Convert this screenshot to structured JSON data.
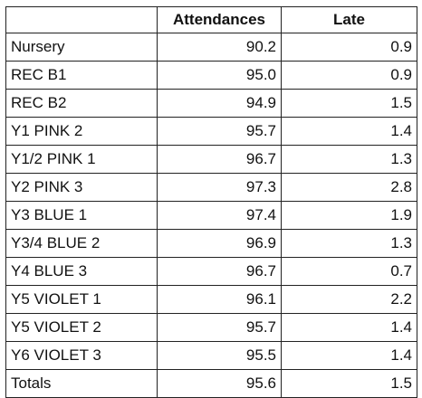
{
  "table": {
    "headers": [
      "",
      "Attendances",
      "Late"
    ],
    "rows": [
      {
        "name": "Nursery",
        "attendances": "90.2",
        "late": "0.9"
      },
      {
        "name": "REC B1",
        "attendances": "95.0",
        "late": "0.9"
      },
      {
        "name": "REC B2",
        "attendances": "94.9",
        "late": "1.5"
      },
      {
        "name": "Y1 PINK 2",
        "attendances": "95.7",
        "late": "1.4"
      },
      {
        "name": "Y1/2 PINK 1",
        "attendances": "96.7",
        "late": "1.3"
      },
      {
        "name": "Y2 PINK 3",
        "attendances": "97.3",
        "late": "2.8"
      },
      {
        "name": "Y3 BLUE 1",
        "attendances": "97.4",
        "late": "1.9"
      },
      {
        "name": "Y3/4 BLUE 2",
        "attendances": "96.9",
        "late": "1.3"
      },
      {
        "name": "Y4 BLUE 3",
        "attendances": "96.7",
        "late": "0.7"
      },
      {
        "name": "Y5 VIOLET 1",
        "attendances": "96.1",
        "late": "2.2"
      },
      {
        "name": "Y5 VIOLET 2",
        "attendances": "95.7",
        "late": "1.4"
      },
      {
        "name": "Y6 VIOLET 3",
        "attendances": "95.5",
        "late": "1.4"
      },
      {
        "name": "Totals",
        "attendances": "95.6",
        "late": "1.5"
      }
    ]
  }
}
